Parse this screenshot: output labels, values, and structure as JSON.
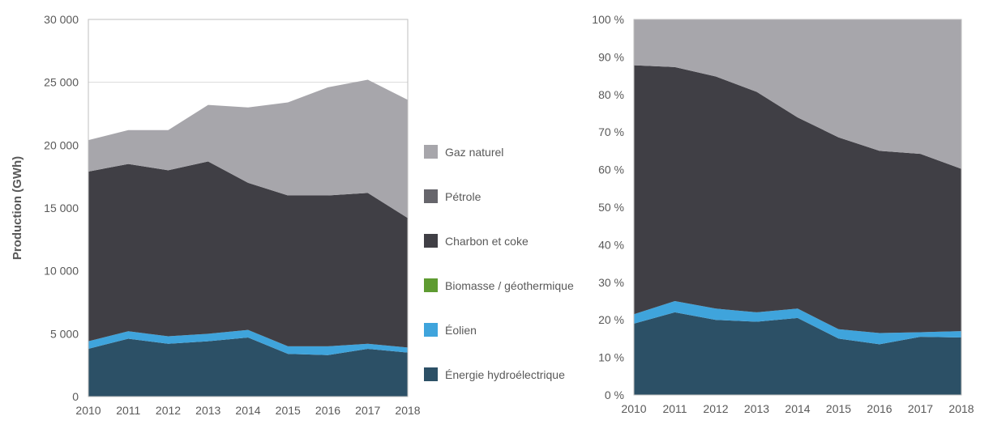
{
  "colors": {
    "gaz": "#A7A6AB",
    "petrole": "#66656B",
    "charbon": "#403F45",
    "biomasse": "#5E9B31",
    "eolien": "#3FA4DC",
    "hydro": "#2C5066",
    "axis": "#BFBFBF",
    "text": "#595959"
  },
  "legend": {
    "items": [
      {
        "label": "Gaz naturel",
        "color_key": "gaz"
      },
      {
        "label": "Pétrole",
        "color_key": "petrole"
      },
      {
        "label": "Charbon et coke",
        "color_key": "charbon"
      },
      {
        "label": "Biomasse / géothermique",
        "color_key": "biomasse"
      },
      {
        "label": "Éolien",
        "color_key": "eolien"
      },
      {
        "label": "Énergie hydroélectrique",
        "color_key": "hydro"
      }
    ]
  },
  "chart_data": [
    {
      "type": "area",
      "stacked": true,
      "title": "",
      "xlabel": "",
      "ylabel": "Production (GWh)",
      "ylim": [
        0,
        30000
      ],
      "yticks": [
        "0",
        "5 000",
        "10 000",
        "15 000",
        "20 000",
        "25 000",
        "30 000"
      ],
      "x": [
        "2010",
        "2011",
        "2012",
        "2013",
        "2014",
        "2015",
        "2016",
        "2017",
        "2018"
      ],
      "grid": true,
      "series": [
        {
          "name": "Énergie hydroélectrique",
          "color_key": "hydro",
          "values": [
            3800,
            4600,
            4200,
            4400,
            4700,
            3400,
            3300,
            3800,
            3500
          ]
        },
        {
          "name": "Éolien",
          "color_key": "eolien",
          "values": [
            600,
            600,
            600,
            600,
            600,
            600,
            700,
            400,
            400
          ]
        },
        {
          "name": "Biomasse / géothermique",
          "color_key": "biomasse",
          "values": [
            0,
            0,
            0,
            0,
            0,
            0,
            0,
            0,
            0
          ]
        },
        {
          "name": "Charbon et coke",
          "color_key": "charbon",
          "values": [
            13500,
            13300,
            13200,
            13700,
            11700,
            12000,
            12000,
            12000,
            10300
          ]
        },
        {
          "name": "Pétrole",
          "color_key": "petrole",
          "values": [
            0,
            0,
            0,
            0,
            0,
            0,
            0,
            0,
            0
          ]
        },
        {
          "name": "Gaz naturel",
          "color_key": "gaz",
          "values": [
            2500,
            2700,
            3200,
            4500,
            6000,
            7400,
            8600,
            9000,
            9400
          ]
        }
      ]
    },
    {
      "type": "area",
      "stacked": true,
      "title": "",
      "xlabel": "",
      "ylabel": "",
      "ylim": [
        0,
        100
      ],
      "yticks": [
        "0 %",
        "10 %",
        "20 %",
        "30 %",
        "40 %",
        "50 %",
        "60 %",
        "70 %",
        "80 %",
        "90 %",
        "100 %"
      ],
      "x": [
        "2010",
        "2011",
        "2012",
        "2013",
        "2014",
        "2015",
        "2016",
        "2017",
        "2018"
      ],
      "grid": false,
      "series": [
        {
          "name": "Énergie hydroélectrique",
          "color_key": "hydro",
          "values": [
            19,
            22,
            20,
            19.5,
            20.5,
            15,
            13.5,
            15.5,
            15.3
          ]
        },
        {
          "name": "Éolien",
          "color_key": "eolien",
          "values": [
            2.5,
            3,
            3,
            2.5,
            2.5,
            2.5,
            3,
            1.2,
            1.7
          ]
        },
        {
          "name": "Biomasse / géothermique",
          "color_key": "biomasse",
          "values": [
            0,
            0,
            0,
            0,
            0,
            0,
            0,
            0,
            0
          ]
        },
        {
          "name": "Charbon et coke",
          "color_key": "charbon",
          "values": [
            66.3,
            62.3,
            61.8,
            58.7,
            50.9,
            51.1,
            48.5,
            47.5,
            43.2
          ]
        },
        {
          "name": "Pétrole",
          "color_key": "petrole",
          "values": [
            0,
            0,
            0,
            0,
            0,
            0,
            0,
            0,
            0
          ]
        },
        {
          "name": "Gaz naturel",
          "color_key": "gaz",
          "values": [
            12.2,
            12.7,
            15.2,
            19.3,
            26.1,
            31.4,
            35,
            35.8,
            39.8
          ]
        }
      ]
    }
  ]
}
